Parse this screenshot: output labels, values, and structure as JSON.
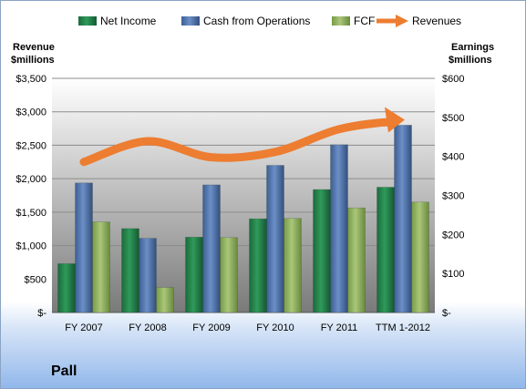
{
  "chart_data": {
    "type": "bar",
    "categories": [
      "FY 2007",
      "FY 2008",
      "FY 2009",
      "FY 2010",
      "FY 2011",
      "TTM 1-2012"
    ],
    "series": [
      {
        "name": "Net Income",
        "axis": "right",
        "color": "#1e7b45",
        "values": [
          125,
          215,
          193,
          240,
          315,
          321
        ]
      },
      {
        "name": "Cash from Operations",
        "axis": "right",
        "color": "#4a6fa5",
        "values": [
          332,
          190,
          327,
          377,
          430,
          480
        ]
      },
      {
        "name": "FCF",
        "axis": "right",
        "color": "#8fb15a",
        "values": [
          232,
          64,
          192,
          241,
          268,
          283
        ]
      },
      {
        "name": "Revenues",
        "axis": "left",
        "type": "line",
        "color": "#ed7d31",
        "values": [
          2250,
          2560,
          2320,
          2400,
          2740,
          2880
        ]
      }
    ],
    "left_axis": {
      "title_line1": "Revenue",
      "title_line2": "$millions",
      "ylim": [
        0,
        3500
      ],
      "ticks": [
        "$-",
        "$500",
        "$1,000",
        "$1,500",
        "$2,000",
        "$2,500",
        "$3,000",
        "$3,500"
      ]
    },
    "right_axis": {
      "title_line1": "Earnings",
      "title_line2": "$millions",
      "ylim": [
        0,
        600
      ],
      "ticks": [
        "$-",
        "$100",
        "$200",
        "$300",
        "$400",
        "$500",
        "$600"
      ]
    },
    "legend_position": "top",
    "grid": true
  },
  "company": "Pall"
}
